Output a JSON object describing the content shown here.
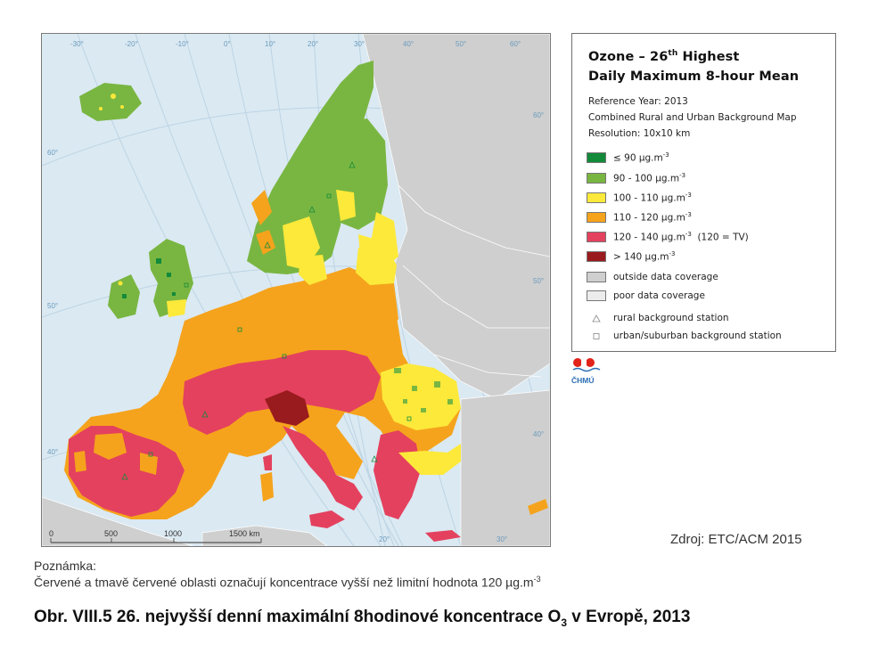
{
  "legend": {
    "title_line1": "Ozone – 26",
    "title_sup": "th",
    "title_line1_end": " Highest",
    "title_line2": "Daily Maximum 8-hour Mean",
    "reference_year": "Reference Year: 2013",
    "map_type": "Combined Rural and Urban Background Map",
    "resolution": "Resolution: 10x10 km",
    "classes": [
      {
        "label": "≤ 90 µg.m",
        "sup": "-3",
        "suffix": "",
        "color": "#138a3a"
      },
      {
        "label": "90 - 100 µg.m",
        "sup": "-3",
        "suffix": "",
        "color": "#79b641"
      },
      {
        "label": "100 - 110 µg.m",
        "sup": "-3",
        "suffix": "",
        "color": "#fde93a"
      },
      {
        "label": "110 - 120 µg.m",
        "sup": "-3",
        "suffix": "",
        "color": "#f5a31c"
      },
      {
        "label": "120 - 140 µg.m",
        "sup": "-3",
        "suffix": "  (120 = TV)",
        "color": "#e4415e"
      },
      {
        "label": "> 140 µg.m",
        "sup": "-3",
        "suffix": "",
        "color": "#9a1b1e"
      },
      {
        "label": "outside data coverage",
        "sup": "",
        "suffix": "",
        "color": "#cfcfcf"
      },
      {
        "label": "poor data coverage",
        "sup": "",
        "suffix": "",
        "color": "#ececec"
      }
    ],
    "stations": [
      {
        "label": "rural background station",
        "symbol": "triangle"
      },
      {
        "label": "urban/suburban background station",
        "symbol": "square"
      }
    ]
  },
  "map": {
    "longitude_labels": [
      "-30°",
      "-20°",
      "-10°",
      "0°",
      "10°",
      "20°",
      "30°",
      "40°",
      "50°",
      "60°"
    ],
    "latitude_labels_left": [
      "60°",
      "50°",
      "40°"
    ],
    "latitude_labels_right": [
      "60°",
      "50°",
      "40°"
    ],
    "bottom_labels": [
      "20°",
      "30°"
    ],
    "scale_bar": [
      "0",
      "500",
      "1000",
      "1500 km"
    ]
  },
  "logo": {
    "name": "ČHMÚ"
  },
  "source": "Zdroj: ETC/ACM 2015",
  "note": {
    "heading": "Poznámka:",
    "text": "Červené a tmavě červené oblasti označují koncentrace vyšší než limitní hodnota 120 µg.m",
    "text_sup": "-3"
  },
  "caption": {
    "before": "Obr. VIII.5  26. nejvyšší denní maximální 8hodinové koncentrace O",
    "sub": "3",
    "after": " v Evropě, 2013"
  }
}
